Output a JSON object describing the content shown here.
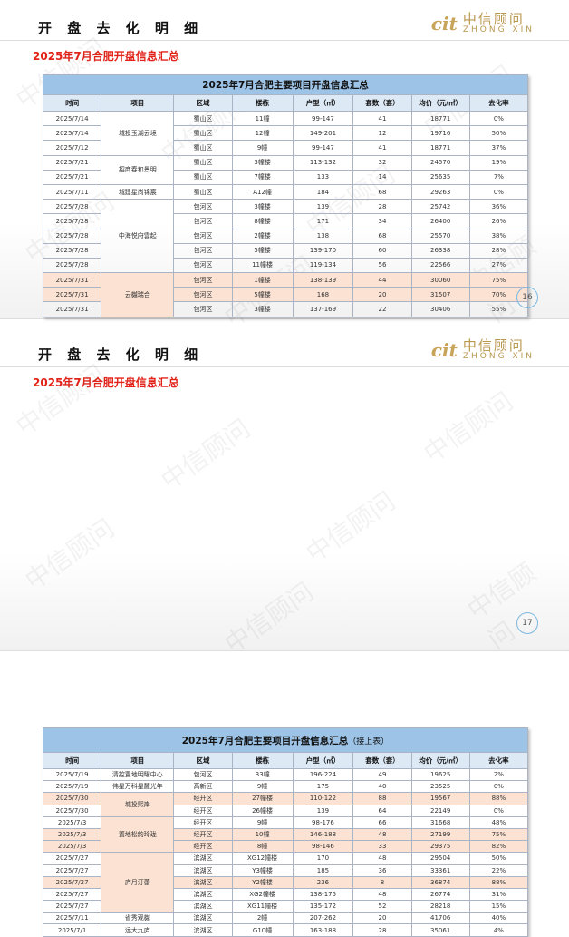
{
  "slides": [
    {
      "heading": "开 盘 去 化 明 细",
      "logo_cn": "中信顾问",
      "logo_en": "ZHONG XIN",
      "subtitle": "2025年7月合肥开盘信息汇总",
      "table_title": "2025年7月合肥主要项目开盘信息汇总",
      "table_note": "",
      "page": "16",
      "groups": [
        {
          "project": "城投玉湖云境",
          "highlight": false,
          "rows": [
            [
              "2025/7/14",
              "蜀山区",
              "11幢",
              "99-147",
              "41",
              "18771",
              "0%",
              false
            ],
            [
              "2025/7/14",
              "蜀山区",
              "12幢",
              "149-201",
              "12",
              "19716",
              "50%",
              false
            ],
            [
              "2025/7/12",
              "蜀山区",
              "9幢",
              "99-147",
              "41",
              "18771",
              "37%",
              false
            ]
          ]
        },
        {
          "project": "招商春和景明",
          "highlight": false,
          "rows": [
            [
              "2025/7/21",
              "蜀山区",
              "3幢楼",
              "113-132",
              "32",
              "24570",
              "19%",
              false
            ],
            [
              "2025/7/21",
              "蜀山区",
              "7幢楼",
              "133",
              "14",
              "25635",
              "7%",
              false
            ]
          ]
        },
        {
          "project": "城建星尚锦宸",
          "highlight": false,
          "rows": [
            [
              "2025/7/11",
              "蜀山区",
              "A12幢",
              "184",
              "68",
              "29263",
              "0%",
              false
            ]
          ]
        },
        {
          "project": "中海悦府雲起",
          "highlight": false,
          "rows": [
            [
              "2025/7/28",
              "包河区",
              "3幢楼",
              "139",
              "28",
              "25742",
              "36%",
              false
            ],
            [
              "2025/7/28",
              "包河区",
              "8幢楼",
              "171",
              "34",
              "26400",
              "26%",
              false
            ],
            [
              "2025/7/28",
              "包河区",
              "2幢楼",
              "138",
              "68",
              "25570",
              "38%",
              false
            ],
            [
              "2025/7/28",
              "包河区",
              "5幢楼",
              "139-170",
              "60",
              "26338",
              "28%",
              false
            ],
            [
              "2025/7/28",
              "包河区",
              "11幢楼",
              "119-134",
              "56",
              "22566",
              "27%",
              false
            ]
          ]
        },
        {
          "project": "云樾瑞合",
          "highlight": true,
          "rows": [
            [
              "2025/7/31",
              "包河区",
              "1幢楼",
              "138-139",
              "44",
              "30060",
              "75%",
              true
            ],
            [
              "2025/7/31",
              "包河区",
              "5幢楼",
              "168",
              "20",
              "31507",
              "70%",
              true
            ],
            [
              "2025/7/31",
              "包河区",
              "3幢楼",
              "137-169",
              "22",
              "30406",
              "55%",
              false
            ]
          ]
        }
      ]
    },
    {
      "heading": "开 盘 去 化 明 细",
      "logo_cn": "中信顾问",
      "logo_en": "ZHONG XIN",
      "subtitle": "2025年7月合肥开盘信息汇总",
      "table_title": "2025年7月合肥主要项目开盘信息汇总",
      "table_note": "（接上表）",
      "page": "17",
      "groups": [
        {
          "project": "清控置地明曜中心",
          "highlight": false,
          "rows": [
            [
              "2025/7/19",
              "包河区",
              "B3幢",
              "196-224",
              "49",
              "19625",
              "2%",
              false
            ]
          ]
        },
        {
          "project": "伟星万科星麓光年",
          "highlight": false,
          "rows": [
            [
              "2025/7/19",
              "高新区",
              "9幢",
              "175",
              "40",
              "23525",
              "0%",
              false
            ]
          ]
        },
        {
          "project": "城投熙岸",
          "highlight": true,
          "rows": [
            [
              "2025/7/30",
              "经开区",
              "27幢楼",
              "110-122",
              "88",
              "19567",
              "88%",
              true
            ],
            [
              "2025/7/30",
              "经开区",
              "26幢楼",
              "139",
              "64",
              "22149",
              "0%",
              false
            ]
          ]
        },
        {
          "project": "置地松韵玲珑",
          "highlight": true,
          "rows": [
            [
              "2025/7/3",
              "经开区",
              "9幢",
              "98-176",
              "66",
              "31668",
              "48%",
              false
            ],
            [
              "2025/7/3",
              "经开区",
              "10幢",
              "146-188",
              "48",
              "27199",
              "75%",
              true
            ],
            [
              "2025/7/3",
              "经开区",
              "8幢",
              "98-146",
              "33",
              "29375",
              "82%",
              true
            ]
          ]
        },
        {
          "project": "庐月汀蕾",
          "highlight": true,
          "rows": [
            [
              "2025/7/27",
              "滨湖区",
              "XG12幢楼",
              "170",
              "48",
              "29504",
              "50%",
              false
            ],
            [
              "2025/7/27",
              "滨湖区",
              "Y3幢楼",
              "185",
              "36",
              "33361",
              "22%",
              false
            ],
            [
              "2025/7/27",
              "滨湖区",
              "Y2幢楼",
              "236",
              "8",
              "36874",
              "88%",
              true
            ],
            [
              "2025/7/27",
              "滨湖区",
              "XG2幢楼",
              "138-175",
              "48",
              "26774",
              "31%",
              false
            ],
            [
              "2025/7/27",
              "滨湖区",
              "XG11幢楼",
              "135-172",
              "52",
              "28218",
              "15%",
              false
            ]
          ]
        },
        {
          "project": "省秀观樾",
          "highlight": false,
          "rows": [
            [
              "2025/7/11",
              "滨湖区",
              "2幢",
              "207-262",
              "20",
              "41706",
              "40%",
              false
            ]
          ]
        },
        {
          "project": "远大九庐",
          "highlight": false,
          "rows": [
            [
              "2025/7/1",
              "滨湖区",
              "G10幢",
              "163-188",
              "28",
              "35061",
              "4%",
              false
            ]
          ]
        }
      ]
    }
  ],
  "columns": [
    "时间",
    "项目",
    "区域",
    "楼栋",
    "户型（㎡）",
    "套数（套）",
    "均价（元/㎡）",
    "去化率"
  ],
  "colors": {
    "title_bar": "#9dc3e6",
    "header": "#dde9f5",
    "highlight": "#fbe2d3",
    "subtitle": "#e2231a",
    "logo": "#b8974e"
  },
  "watermark": "中信顾问"
}
